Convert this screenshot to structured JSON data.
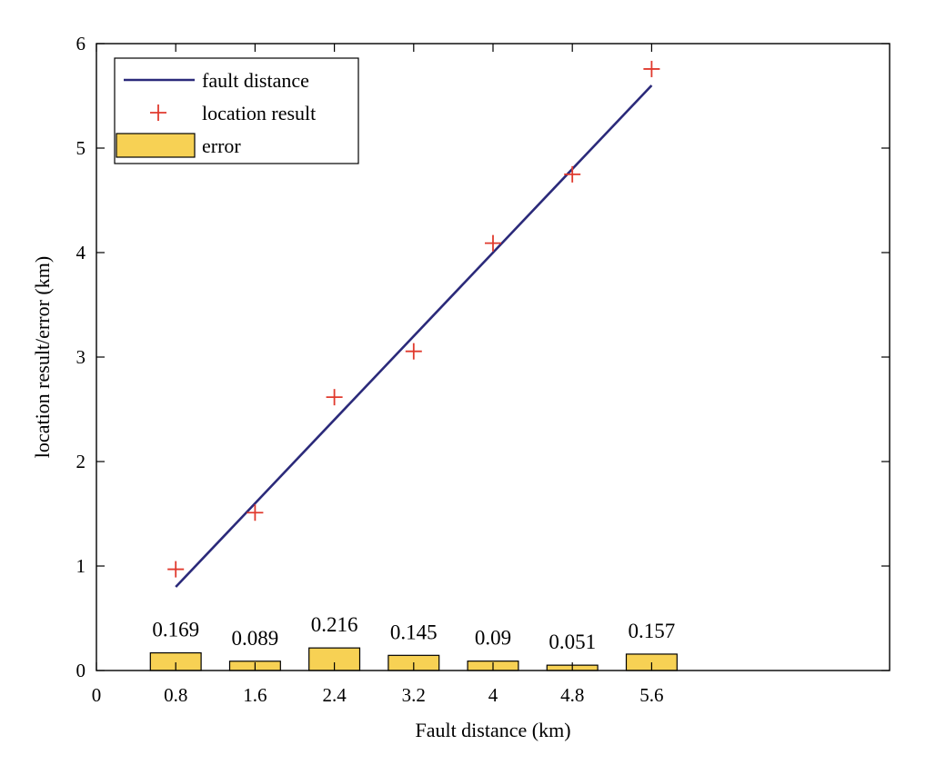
{
  "chart_data": {
    "type": "bar",
    "title": "",
    "xlabel": "Fault distance (km)",
    "ylabel": "location result/error (km)",
    "xlim": [
      0,
      8
    ],
    "ylim": [
      0,
      6
    ],
    "x_ticks": [
      "0",
      "0.8",
      "1.6",
      "2.4",
      "3.2",
      "4",
      "4.8",
      "5.6"
    ],
    "y_ticks": [
      "0",
      "1",
      "2",
      "3",
      "4",
      "5",
      "6"
    ],
    "legend_position": "top-left",
    "legend": [
      "fault distance",
      "location result",
      "error"
    ],
    "fault_distance": {
      "x": [
        0.8,
        5.6
      ],
      "y": [
        0.8,
        5.6
      ],
      "color": "#2b2a7a"
    },
    "location_result": {
      "x": [
        0.8,
        1.6,
        2.4,
        3.2,
        4.0,
        4.8,
        5.6
      ],
      "y": [
        0.969,
        1.511,
        2.616,
        3.055,
        4.09,
        4.749,
        5.757
      ],
      "color": "#e03a2e"
    },
    "error": {
      "x": [
        0.8,
        1.6,
        2.4,
        3.2,
        4.0,
        4.8,
        5.6
      ],
      "values": [
        0.169,
        0.089,
        0.216,
        0.145,
        0.09,
        0.051,
        0.157
      ],
      "labels": [
        "0.169",
        "0.089",
        "0.216",
        "0.145",
        "0.09",
        "0.051",
        "0.157"
      ],
      "color": "#f7d154"
    }
  }
}
